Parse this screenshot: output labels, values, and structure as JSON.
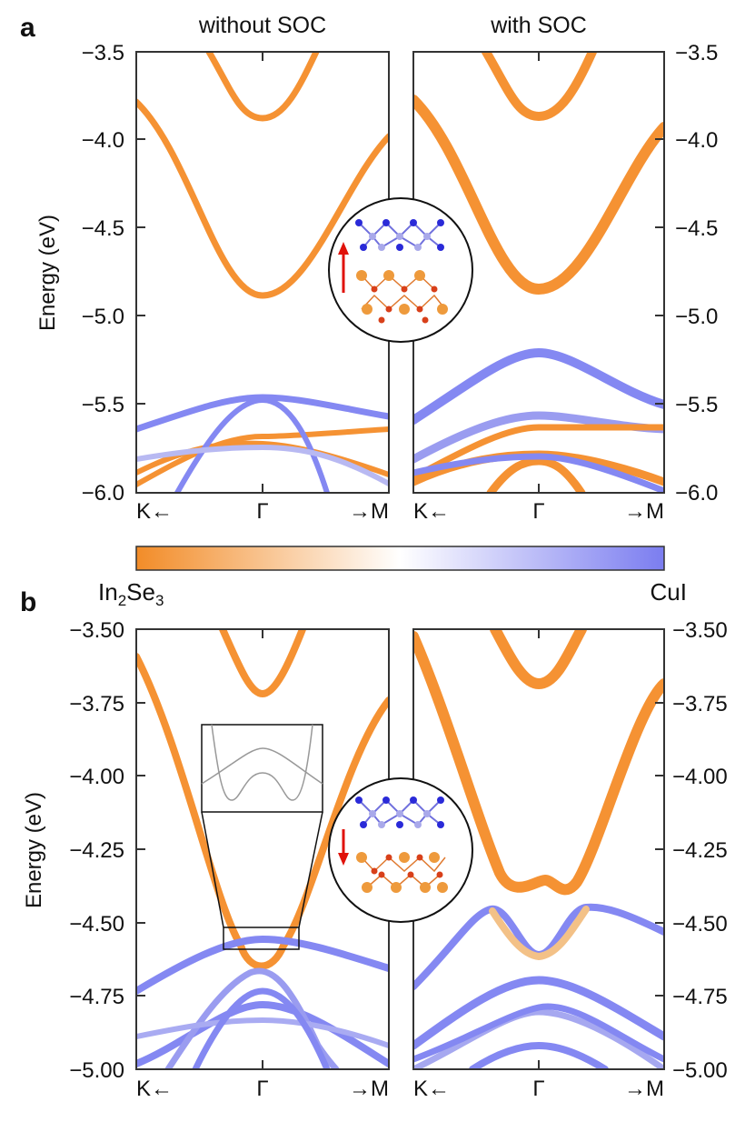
{
  "colorbar": {
    "left_label": "In",
    "left_sub1": "2",
    "left_mid": "Se",
    "left_sub2": "3",
    "right_label": "CuI",
    "color_left": "#f28c28",
    "color_mid": "#ffffff",
    "color_right": "#7b7df0"
  },
  "colors": {
    "in2se3": "#f59233",
    "cui": "#8488f2",
    "arrow": "#e0120a",
    "atom_blue_dark": "#2a2ad8",
    "atom_blue_light": "#a9a9ea",
    "atom_orange": "#ee9a3c",
    "atom_red": "#d8401a"
  },
  "panel_a": {
    "label": "a",
    "title_left": "without SOC",
    "title_right": "with SOC",
    "ylabel": "Energy (eV)",
    "yticks": [
      "−3.5",
      "−4.0",
      "−4.5",
      "−5.0",
      "−5.5",
      "−6.0"
    ],
    "xtick_left": "K←",
    "xtick_mid": "Γ",
    "xtick_right": "→M",
    "ylim": [
      -6.0,
      -3.5
    ]
  },
  "panel_b": {
    "label": "b",
    "ylabel": "Energy (eV)",
    "yticks": [
      "−3.50",
      "−3.75",
      "−4.00",
      "−4.25",
      "−4.50",
      "−4.75",
      "−5.00"
    ],
    "xtick_left": "K←",
    "xtick_mid": "Γ",
    "xtick_right": "→M",
    "ylim": [
      -5.0,
      -3.5
    ]
  },
  "chart_data": [
    {
      "type": "line",
      "panel": "a-left",
      "ylim": [
        -6.0,
        -3.5
      ],
      "xlim": [
        -1,
        1
      ],
      "series": [
        {
          "x": [
            -1,
            -0.5,
            0,
            0.5,
            1
          ],
          "y": [
            -3.8,
            -4.33,
            -4.9,
            -4.33,
            -4.0
          ],
          "weight": 0
        },
        {
          "x": [
            -0.5,
            0,
            0.5
          ],
          "y": [
            -3.5,
            -3.88,
            -3.5
          ],
          "weight": 0
        },
        {
          "x": [
            -1,
            -0.5,
            0,
            0.5,
            1
          ],
          "y": [
            -5.68,
            -5.55,
            -5.48,
            -5.55,
            -5.6
          ],
          "weight": 1
        },
        {
          "x": [
            -1,
            -0.5,
            0,
            0.5,
            1
          ],
          "y": [
            -6.0,
            -5.85,
            -5.78,
            -5.72,
            -5.68
          ],
          "weight": 0
        }
      ]
    },
    {
      "type": "line",
      "panel": "a-right",
      "ylim": [
        -6.0,
        -3.5
      ],
      "xlim": [
        -1,
        1
      ],
      "series": [
        {
          "x": [
            -1,
            -0.5,
            0,
            0.5,
            1
          ],
          "y": [
            -3.8,
            -4.33,
            -4.87,
            -4.3,
            -3.95
          ],
          "weight": 0
        },
        {
          "x": [
            -0.5,
            0,
            0.5
          ],
          "y": [
            -3.5,
            -3.87,
            -3.5
          ],
          "weight": 0
        },
        {
          "x": [
            -1,
            -0.5,
            0,
            0.5,
            1
          ],
          "y": [
            -5.62,
            -5.4,
            -5.23,
            -5.4,
            -5.55
          ],
          "weight": 1
        },
        {
          "x": [
            -1,
            -0.5,
            0,
            0.5,
            1
          ],
          "y": [
            -5.88,
            -5.68,
            -5.58,
            -5.66,
            -5.68
          ],
          "weight": 0.5
        }
      ]
    },
    {
      "type": "line",
      "panel": "b-left",
      "ylim": [
        -5.0,
        -3.5
      ],
      "xlim": [
        -1,
        1
      ],
      "series": [
        {
          "x": [
            -1,
            -0.5,
            -0.25,
            0,
            0.25,
            0.5,
            1
          ],
          "y": [
            -3.6,
            -4.45,
            -4.62,
            -4.63,
            -4.62,
            -4.4,
            -3.75
          ],
          "weight": 0
        },
        {
          "x": [
            -0.5,
            0,
            0.5
          ],
          "y": [
            -3.5,
            -3.72,
            -3.5
          ],
          "weight": 0
        },
        {
          "x": [
            -1,
            -0.5,
            0,
            0.5,
            1
          ],
          "y": [
            -4.75,
            -4.6,
            -4.56,
            -4.6,
            -4.66
          ],
          "weight": 1
        },
        {
          "x": [
            -1,
            -0.5,
            0,
            0.5,
            1
          ],
          "y": [
            -5.0,
            -4.85,
            -4.79,
            -4.85,
            -5.0
          ],
          "weight": 1
        }
      ]
    },
    {
      "type": "line",
      "panel": "b-right",
      "ylim": [
        -5.0,
        -3.5
      ],
      "xlim": [
        -1,
        1
      ],
      "series": [
        {
          "x": [
            -1,
            -0.5,
            -0.25,
            0,
            0.25,
            0.5,
            1
          ],
          "y": [
            -3.55,
            -4.2,
            -4.37,
            -4.35,
            -4.38,
            -4.2,
            -3.65
          ],
          "weight": 0.2
        },
        {
          "x": [
            -0.5,
            0,
            0.5
          ],
          "y": [
            -3.5,
            -3.62,
            -3.5
          ],
          "weight": 0
        },
        {
          "x": [
            -1,
            -0.5,
            0,
            0.5,
            1
          ],
          "y": [
            -4.72,
            -4.55,
            -4.62,
            -4.55,
            -4.5
          ],
          "weight": 0.6
        },
        {
          "x": [
            -1,
            -0.5,
            0,
            0.5,
            1
          ],
          "y": [
            -4.98,
            -4.8,
            -4.7,
            -4.8,
            -4.95
          ],
          "weight": 1
        }
      ]
    }
  ]
}
